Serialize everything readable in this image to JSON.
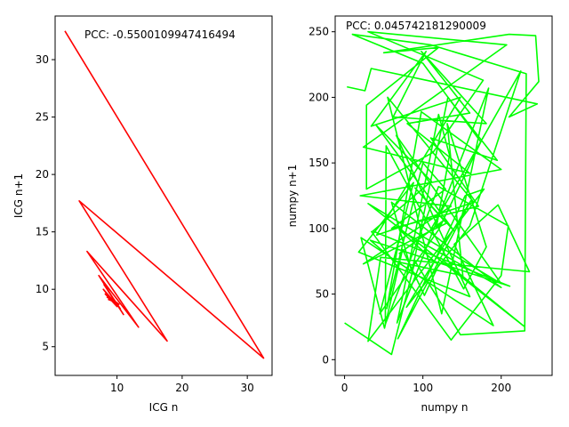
{
  "chart_data": [
    {
      "type": "line",
      "title": "",
      "xlabel": "ICG n",
      "ylabel": "ICG n+1",
      "xlim": [
        0.5,
        33.8
      ],
      "ylim": [
        2.5,
        33.8
      ],
      "xticks": [
        10,
        20,
        30
      ],
      "xtick_labels": [
        "10",
        "20",
        "30"
      ],
      "yticks": [
        5,
        10,
        15,
        20,
        25,
        30
      ],
      "ytick_labels": [
        "5",
        "10",
        "15",
        "20",
        "25",
        "30"
      ],
      "grid": false,
      "annotation": "PCC: -0.5500109947416494",
      "color": "#ff0000",
      "series": [
        {
          "x": [
            2.0,
            32.5,
            4.2,
            17.7,
            5.4,
            13.3,
            7.2,
            11.0,
            8.0,
            10.5,
            7.9,
            10.0,
            8.2,
            10.3,
            8.5,
            9.8,
            8.7,
            10.1
          ],
          "y": [
            32.5,
            4.0,
            17.7,
            5.5,
            13.3,
            6.7,
            11.2,
            7.8,
            10.4,
            8.3,
            10.0,
            8.5,
            9.6,
            8.7,
            9.3,
            8.9,
            9.1,
            8.8
          ]
        }
      ]
    },
    {
      "type": "line",
      "title": "",
      "xlabel": "numpy n",
      "ylabel": "numpy n+1",
      "xlim": [
        -12,
        265
      ],
      "ylim": [
        -12,
        262
      ],
      "xticks": [
        0,
        100,
        200
      ],
      "xtick_labels": [
        "0",
        "100",
        "200"
      ],
      "yticks": [
        0,
        50,
        100,
        150,
        200,
        250
      ],
      "ytick_labels": [
        "0",
        "50",
        "100",
        "150",
        "200",
        "250"
      ],
      "grid": false,
      "annotation": "PCC: 0.045742181290009",
      "color": "#00ff00",
      "series": [
        {
          "x": [
            3,
            26,
            34,
            246,
            210,
            248,
            244,
            210,
            50,
            120,
            28,
            28,
            113,
            177,
            30,
            207,
            24,
            160,
            80,
            160,
            98,
            181,
            62,
            104,
            34,
            148,
            41,
            165,
            55,
            124,
            184,
            67,
            74,
            120,
            134,
            117,
            126,
            70,
            109,
            225,
            160,
            79,
            161,
            68,
            154,
            178,
            30,
            46,
            236,
            196,
            140,
            190,
            21,
            51,
            74,
            102,
            120,
            70,
            200,
            60,
            86,
            132,
            195,
            110,
            171,
            60,
            129,
            100,
            54,
            98,
            200,
            20,
            136,
            24,
            130,
            90,
            140,
            40,
            111,
            36,
            211,
            33,
            64,
            151,
            131,
            181,
            152,
            53,
            52,
            120,
            209,
            200,
            136,
            34
          ],
          "y": [
            208,
            205,
            222,
            195,
            185,
            212,
            247,
            248,
            234,
            238,
            194,
            130,
            158,
            213,
            250,
            240,
            162,
            142,
            180,
            188,
            235,
            180,
            185,
            235,
            178,
            200,
            95,
            120,
            200,
            35,
            207,
            28,
            48,
            187,
            156,
            100,
            106,
            81,
            98,
            220,
            102,
            40,
            121,
            16,
            125,
            130,
            14,
            78,
            67,
            118,
            88,
            26,
            93,
            24,
            84,
            49,
            72,
            99,
            55,
            120,
            67,
            200,
            152,
            169,
            117,
            100,
            130,
            150,
            39,
            189,
            145,
            125,
            117,
            73,
            104,
            131,
            98,
            179,
            136,
            98,
            56,
            91,
            75,
            64,
            180,
            86,
            54,
            163,
            27,
            132,
            102,
            64,
            15,
            98
          ]
        },
        {
          "x": [
            0,
            60,
            90,
            148,
            230,
            232,
            110,
            10,
            100,
            174,
            120,
            45,
            88,
            18,
            160,
            66,
            200,
            30,
            230,
            125
          ],
          "y": [
            28,
            4,
            75,
            19,
            22,
            218,
            240,
            248,
            226,
            166,
            99,
            35,
            135,
            82,
            48,
            171,
            58,
            119,
            25,
            76
          ]
        }
      ]
    }
  ]
}
